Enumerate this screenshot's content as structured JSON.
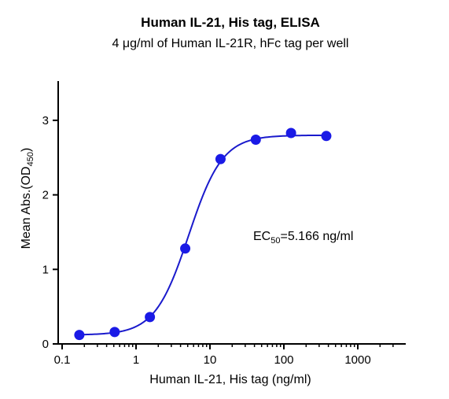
{
  "chart_data": {
    "type": "scatter",
    "title": "Human IL-21, His tag, ELISA",
    "subtitle": "4 μg/ml of Human IL-21R, hFc tag per well",
    "xlabel": "Human IL-21, His tag (ng/ml)",
    "ylabel": {
      "main": "Mean Abs.(OD",
      "sub": "450",
      "close": ")"
    },
    "x_scale": "log",
    "xlim": [
      0.1,
      3000
    ],
    "ylim": [
      0,
      3.3
    ],
    "x_ticks": [
      {
        "value": 0.1,
        "label": "0.1"
      },
      {
        "value": 1,
        "label": "1"
      },
      {
        "value": 10,
        "label": "10"
      },
      {
        "value": 100,
        "label": "100"
      },
      {
        "value": 1000,
        "label": "1000"
      }
    ],
    "y_ticks": [
      {
        "value": 0,
        "label": "0"
      },
      {
        "value": 1,
        "label": "1"
      },
      {
        "value": 2,
        "label": "2"
      },
      {
        "value": 3,
        "label": "3"
      }
    ],
    "series": [
      {
        "x": [
          0.171,
          0.514,
          1.54,
          4.63,
          13.9,
          41.7,
          125,
          375
        ],
        "y": [
          0.12,
          0.16,
          0.36,
          1.28,
          2.48,
          2.74,
          2.83,
          2.79
        ]
      }
    ],
    "fit": {
      "type": "4PL",
      "bottom": 0.12,
      "top": 2.8,
      "ec50": 5.166,
      "hill": 1.9
    },
    "annotation": {
      "prefix": "EC",
      "sub": "50",
      "suffix": "=5.166 ng/ml"
    },
    "grid": false,
    "legend": "none",
    "colors": {
      "series": "#1a1ae6",
      "curve": "#1a1acc",
      "axis": "#000000"
    }
  }
}
